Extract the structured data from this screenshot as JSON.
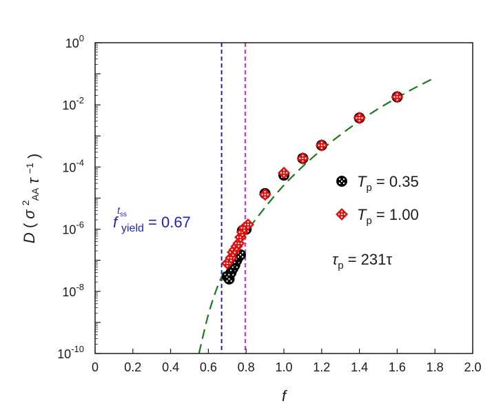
{
  "chart_data": {
    "type": "scatter",
    "xlabel": "f",
    "ylabel": "D (σ²_AA τ⁻¹)",
    "xlim": [
      0,
      2.0
    ],
    "ylim": [
      1e-10,
      1
    ],
    "yscale": "log",
    "x_ticks": [
      "0",
      "0.2",
      "0.4",
      "0.6",
      "0.8",
      "1.0",
      "1.2",
      "1.4",
      "1.6",
      "1.8",
      "2.0"
    ],
    "y_ticks": [
      {
        "base": "10",
        "exp": "0"
      },
      {
        "base": "10",
        "exp": "-2"
      },
      {
        "base": "10",
        "exp": "-4"
      },
      {
        "base": "10",
        "exp": "-6"
      },
      {
        "base": "10",
        "exp": "-8"
      },
      {
        "base": "10",
        "exp": "-10"
      }
    ],
    "series": [
      {
        "name": "T_p = 0.35",
        "marker": "circle",
        "color": "#000000",
        "points": [
          [
            0.7,
            3e-08
          ],
          [
            0.71,
            2.5e-08
          ],
          [
            0.72,
            4e-08
          ],
          [
            0.73,
            5.5e-08
          ],
          [
            0.74,
            7e-08
          ],
          [
            0.75,
            1e-07
          ],
          [
            0.76,
            1.3e-07
          ],
          [
            0.77,
            1.5e-07
          ],
          [
            0.78,
            9e-07
          ],
          [
            0.8,
            1e-06
          ],
          [
            0.9,
            1.4e-05
          ],
          [
            1.0,
            5.5e-05
          ],
          [
            1.1,
            0.00019
          ],
          [
            1.2,
            0.0005
          ],
          [
            1.4,
            0.0038
          ],
          [
            1.6,
            0.018
          ]
        ]
      },
      {
        "name": "T_p = 1.00",
        "marker": "diamond",
        "color": "#e01010",
        "points": [
          [
            0.7,
            8e-08
          ],
          [
            0.72,
            1.2e-07
          ],
          [
            0.73,
            1.8e-07
          ],
          [
            0.74,
            2.2e-07
          ],
          [
            0.75,
            2.8e-07
          ],
          [
            0.76,
            3.5e-07
          ],
          [
            0.77,
            5.5e-07
          ],
          [
            0.78,
            8e-07
          ],
          [
            0.79,
            1.1e-06
          ],
          [
            0.81,
            1.4e-06
          ],
          [
            0.9,
            1.3e-05
          ],
          [
            1.0,
            6.5e-05
          ],
          [
            1.1,
            0.00019
          ],
          [
            1.2,
            0.0005
          ],
          [
            1.4,
            0.0038
          ],
          [
            1.6,
            0.018
          ]
        ]
      }
    ],
    "fit": {
      "color": "#1a7a1a",
      "style": "dashed",
      "points": [
        [
          0.55,
          1e-10
        ],
        [
          0.6,
          1.8e-09
        ],
        [
          0.65,
          1.5e-08
        ],
        [
          0.7,
          7e-08
        ],
        [
          0.75,
          2.6e-07
        ],
        [
          0.8,
          8e-07
        ],
        [
          0.9,
          5e-06
        ],
        [
          1.0,
          2.6e-05
        ],
        [
          1.1,
          0.000105
        ],
        [
          1.2,
          0.00036
        ],
        [
          1.3,
          0.0011
        ],
        [
          1.4,
          0.003
        ],
        [
          1.5,
          0.0075
        ],
        [
          1.6,
          0.017
        ],
        [
          1.7,
          0.037
        ],
        [
          1.8,
          0.075
        ]
      ]
    },
    "vlines": [
      {
        "x": 0.67,
        "color": "#1f1fbf"
      },
      {
        "x": 0.795,
        "color": "#d020d0"
      }
    ],
    "legend": {
      "placement": "right",
      "entries": [
        {
          "symbol": "T",
          "sub": "p",
          "rest": " = 0.35"
        },
        {
          "symbol": "T",
          "sub": "p",
          "rest": " = 1.00"
        }
      ]
    },
    "annotations": {
      "tau": {
        "symbol": "τ",
        "sub": "p",
        "rest": " = 231τ"
      },
      "yield": {
        "f": "f",
        "sup": "t",
        "supsub": "ss",
        "sub": "yield",
        "rest": " = 0.67"
      }
    }
  }
}
